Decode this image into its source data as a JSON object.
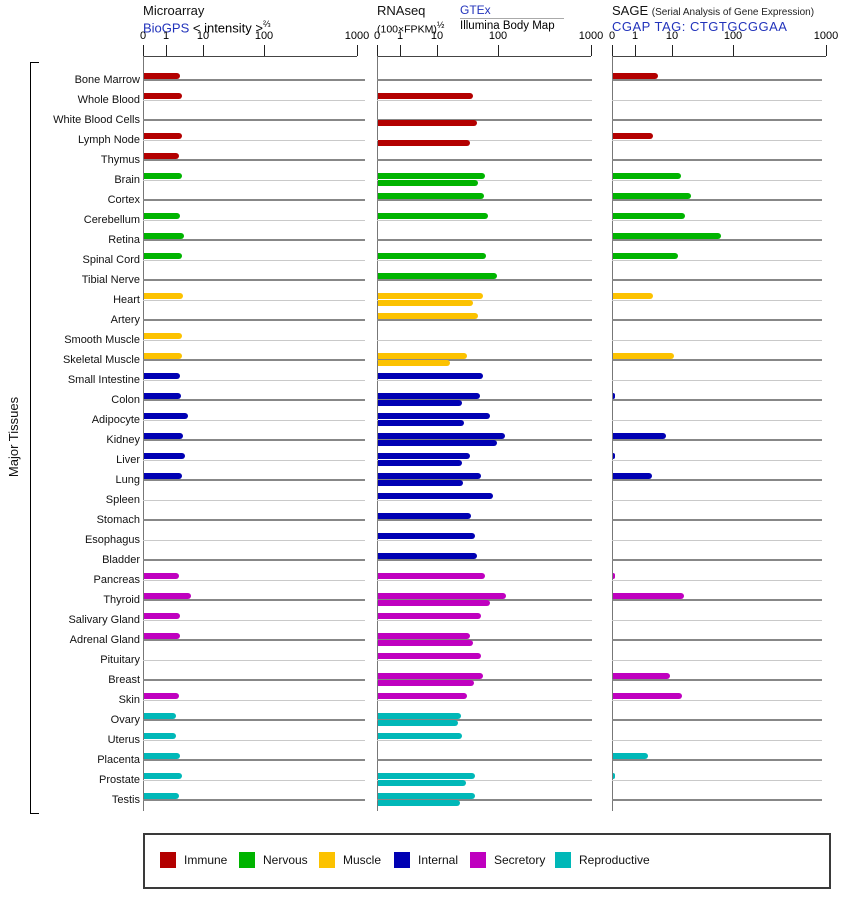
{
  "left_axis": {
    "label": "Major Tissues"
  },
  "panels": [
    {
      "id": "microarray",
      "title": "Microarray",
      "link": "BioGPS",
      "scale_note": "< intensity >",
      "scale_exponent": "⅔"
    },
    {
      "id": "rnaseq",
      "title": "RNAseq",
      "scale_note": "(100×FPKM)",
      "scale_exponent": "½",
      "source_link": "GTEx",
      "source2": "Illumina Body Map"
    },
    {
      "id": "sage",
      "title": "SAGE",
      "title_note": "(Serial Analysis of Gene Expression)",
      "link": "CGAP",
      "tag_label": "TAG: CTGTGCGGAA"
    }
  ],
  "chart_data": {
    "type": "bar",
    "orientation": "horizontal",
    "x_scale": "log-like, ticks at 0/1/10/100/1000",
    "axis_ticks": [
      0,
      1,
      10,
      100,
      1000
    ],
    "series_names": [
      "Microarray BioGPS",
      "RNAseq GTEx",
      "RNAseq Illumina Body Map",
      "SAGE CGAP"
    ],
    "categories": [
      "Bone Marrow",
      "Whole Blood",
      "White Blood Cells",
      "Lymph Node",
      "Thymus",
      "Brain",
      "Cortex",
      "Cerebellum",
      "Retina",
      "Spinal Cord",
      "Tibial Nerve",
      "Heart",
      "Artery",
      "Smooth Muscle",
      "Skeletal Muscle",
      "Small Intestine",
      "Colon",
      "Adipocyte",
      "Kidney",
      "Liver",
      "Lung",
      "Spleen",
      "Stomach",
      "Esophagus",
      "Bladder",
      "Pancreas",
      "Thyroid",
      "Salivary Gland",
      "Adrenal Gland",
      "Pituitary",
      "Breast",
      "Skin",
      "Ovary",
      "Uterus",
      "Placenta",
      "Prostate",
      "Testis"
    ],
    "tissues": [
      {
        "name": "Bone Marrow",
        "group": "Immune",
        "microarray": 2.2,
        "gtex": null,
        "illumina": null,
        "sage": 4.0
      },
      {
        "name": "Whole Blood",
        "group": "Immune",
        "microarray": 2.5,
        "gtex": 38,
        "illumina": null,
        "sage": null
      },
      {
        "name": "White Blood Cells",
        "group": "Immune",
        "microarray": null,
        "gtex": null,
        "illumina": 43,
        "sage": null
      },
      {
        "name": "Lymph Node",
        "group": "Immune",
        "microarray": 2.5,
        "gtex": null,
        "illumina": 34,
        "sage": 2.9
      },
      {
        "name": "Thymus",
        "group": "Immune",
        "microarray": 2.1,
        "gtex": null,
        "illumina": null,
        "sage": null
      },
      {
        "name": "Brain",
        "group": "Nervous",
        "microarray": 2.5,
        "gtex": 58,
        "illumina": 46,
        "sage": 13.5
      },
      {
        "name": "Cortex",
        "group": "Nervous",
        "microarray": null,
        "gtex": 56,
        "illumina": null,
        "sage": 20
      },
      {
        "name": "Cerebellum",
        "group": "Nervous",
        "microarray": 2.2,
        "gtex": 66,
        "illumina": null,
        "sage": 16
      },
      {
        "name": "Retina",
        "group": "Nervous",
        "microarray": 2.9,
        "gtex": null,
        "illumina": null,
        "sage": 61
      },
      {
        "name": "Spinal Cord",
        "group": "Nervous",
        "microarray": 2.5,
        "gtex": 62,
        "illumina": null,
        "sage": 12
      },
      {
        "name": "Tibial Nerve",
        "group": "Nervous",
        "microarray": null,
        "gtex": 92,
        "illumina": null,
        "sage": null
      },
      {
        "name": "Heart",
        "group": "Muscle",
        "microarray": 2.7,
        "gtex": 55,
        "illumina": 38,
        "sage": 2.8
      },
      {
        "name": "Artery",
        "group": "Muscle",
        "microarray": null,
        "gtex": 45,
        "illumina": null,
        "sage": null
      },
      {
        "name": "Smooth Muscle",
        "group": "Muscle",
        "microarray": 2.5,
        "gtex": null,
        "illumina": null,
        "sage": null
      },
      {
        "name": "Skeletal Muscle",
        "group": "Muscle",
        "microarray": 2.6,
        "gtex": 30,
        "illumina": 16,
        "sage": 10.4
      },
      {
        "name": "Small Intestine",
        "group": "Internal",
        "microarray": 2.2,
        "gtex": 55,
        "illumina": null,
        "sage": null
      },
      {
        "name": "Colon",
        "group": "Internal",
        "microarray": 2.4,
        "gtex": 48,
        "illumina": 25,
        "sage": 0.1
      },
      {
        "name": "Adipocyte",
        "group": "Internal",
        "microarray": 3.6,
        "gtex": 72,
        "illumina": 27,
        "sage": null
      },
      {
        "name": "Kidney",
        "group": "Internal",
        "microarray": 2.7,
        "gtex": 115,
        "illumina": 93,
        "sage": 6.6
      },
      {
        "name": "Liver",
        "group": "Internal",
        "microarray": 3.0,
        "gtex": 34,
        "illumina": 25,
        "sage": 0.1
      },
      {
        "name": "Lung",
        "group": "Internal",
        "microarray": 2.6,
        "gtex": 51,
        "illumina": 26,
        "sage": 2.7
      },
      {
        "name": "Spleen",
        "group": "Internal",
        "microarray": null,
        "gtex": 81,
        "illumina": null,
        "sage": null
      },
      {
        "name": "Stomach",
        "group": "Internal",
        "microarray": null,
        "gtex": 35,
        "illumina": null,
        "sage": null
      },
      {
        "name": "Esophagus",
        "group": "Internal",
        "microarray": null,
        "gtex": 41,
        "illumina": null,
        "sage": null
      },
      {
        "name": "Bladder",
        "group": "Internal",
        "microarray": null,
        "gtex": 43,
        "illumina": null,
        "sage": null
      },
      {
        "name": "Pancreas",
        "group": "Secretory",
        "microarray": 2.1,
        "gtex": 59,
        "illumina": null,
        "sage": 0.1
      },
      {
        "name": "Thyroid",
        "group": "Secretory",
        "microarray": 4.4,
        "gtex": 120,
        "illumina": 71,
        "sage": 15
      },
      {
        "name": "Salivary Gland",
        "group": "Secretory",
        "microarray": 2.2,
        "gtex": 51,
        "illumina": null,
        "sage": null
      },
      {
        "name": "Adrenal Gland",
        "group": "Secretory",
        "microarray": 2.2,
        "gtex": 33,
        "illumina": 37,
        "sage": null
      },
      {
        "name": "Pituitary",
        "group": "Secretory",
        "microarray": null,
        "gtex": 51,
        "illumina": null,
        "sage": null
      },
      {
        "name": "Breast",
        "group": "Secretory",
        "microarray": null,
        "gtex": 55,
        "illumina": 39,
        "sage": 8.3
      },
      {
        "name": "Skin",
        "group": "Secretory",
        "microarray": 2.1,
        "gtex": 30,
        "illumina": null,
        "sage": 14
      },
      {
        "name": "Ovary",
        "group": "Reproductive",
        "microarray": 1.7,
        "gtex": 24,
        "illumina": 21,
        "sage": null
      },
      {
        "name": "Uterus",
        "group": "Reproductive",
        "microarray": 1.8,
        "gtex": 25,
        "illumina": null,
        "sage": null
      },
      {
        "name": "Placenta",
        "group": "Reproductive",
        "microarray": 2.3,
        "gtex": null,
        "illumina": null,
        "sage": 2.1
      },
      {
        "name": "Prostate",
        "group": "Reproductive",
        "microarray": 2.5,
        "gtex": 40,
        "illumina": 29,
        "sage": 0.1
      },
      {
        "name": "Testis",
        "group": "Reproductive",
        "microarray": 2.1,
        "gtex": 40,
        "illumina": 23,
        "sage": null
      }
    ]
  },
  "legend": {
    "items": [
      {
        "label": "Immune",
        "color": "#b30000"
      },
      {
        "label": "Nervous",
        "color": "#00b400"
      },
      {
        "label": "Muscle",
        "color": "#fcc200"
      },
      {
        "label": "Internal",
        "color": "#0000b3"
      },
      {
        "label": "Secretory",
        "color": "#bf00bf"
      },
      {
        "label": "Reproductive",
        "color": "#00b8b8"
      }
    ]
  },
  "colors": {
    "link_blue": "#2233bb",
    "row_line_dark": "#878787",
    "row_line_light": "#c9c9c9"
  }
}
